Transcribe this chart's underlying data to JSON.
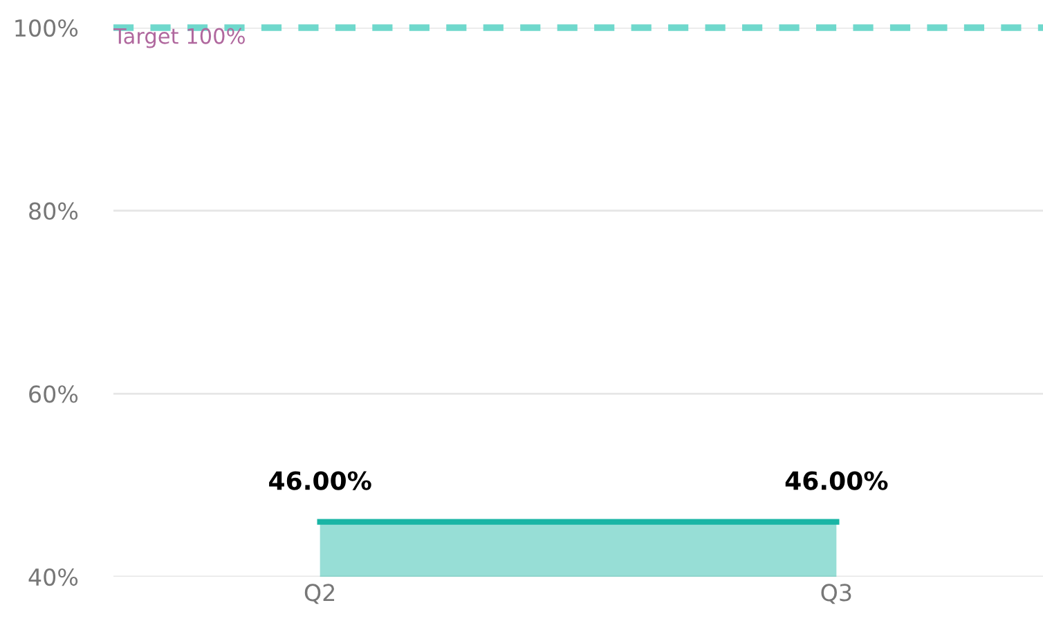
{
  "chart_data": {
    "type": "area",
    "categories": [
      "Q2",
      "Q3"
    ],
    "series": [
      {
        "color": "#19b5a5",
        "values": [
          46,
          46
        ]
      }
    ],
    "ylim": [
      40,
      100
    ],
    "yticks": [
      {
        "value": 40,
        "label": "40%"
      },
      {
        "value": 60,
        "label": "60%"
      },
      {
        "value": 80,
        "label": "80%"
      },
      {
        "value": 100,
        "label": "100%"
      }
    ],
    "grid": "y",
    "value_labels": [
      "46.00%",
      "46.00%"
    ],
    "ref_lines": [
      {
        "axis": "y",
        "value": 100,
        "label": "Target 100%",
        "color": "#6fd8cc",
        "line_style": "dashed"
      }
    ]
  }
}
